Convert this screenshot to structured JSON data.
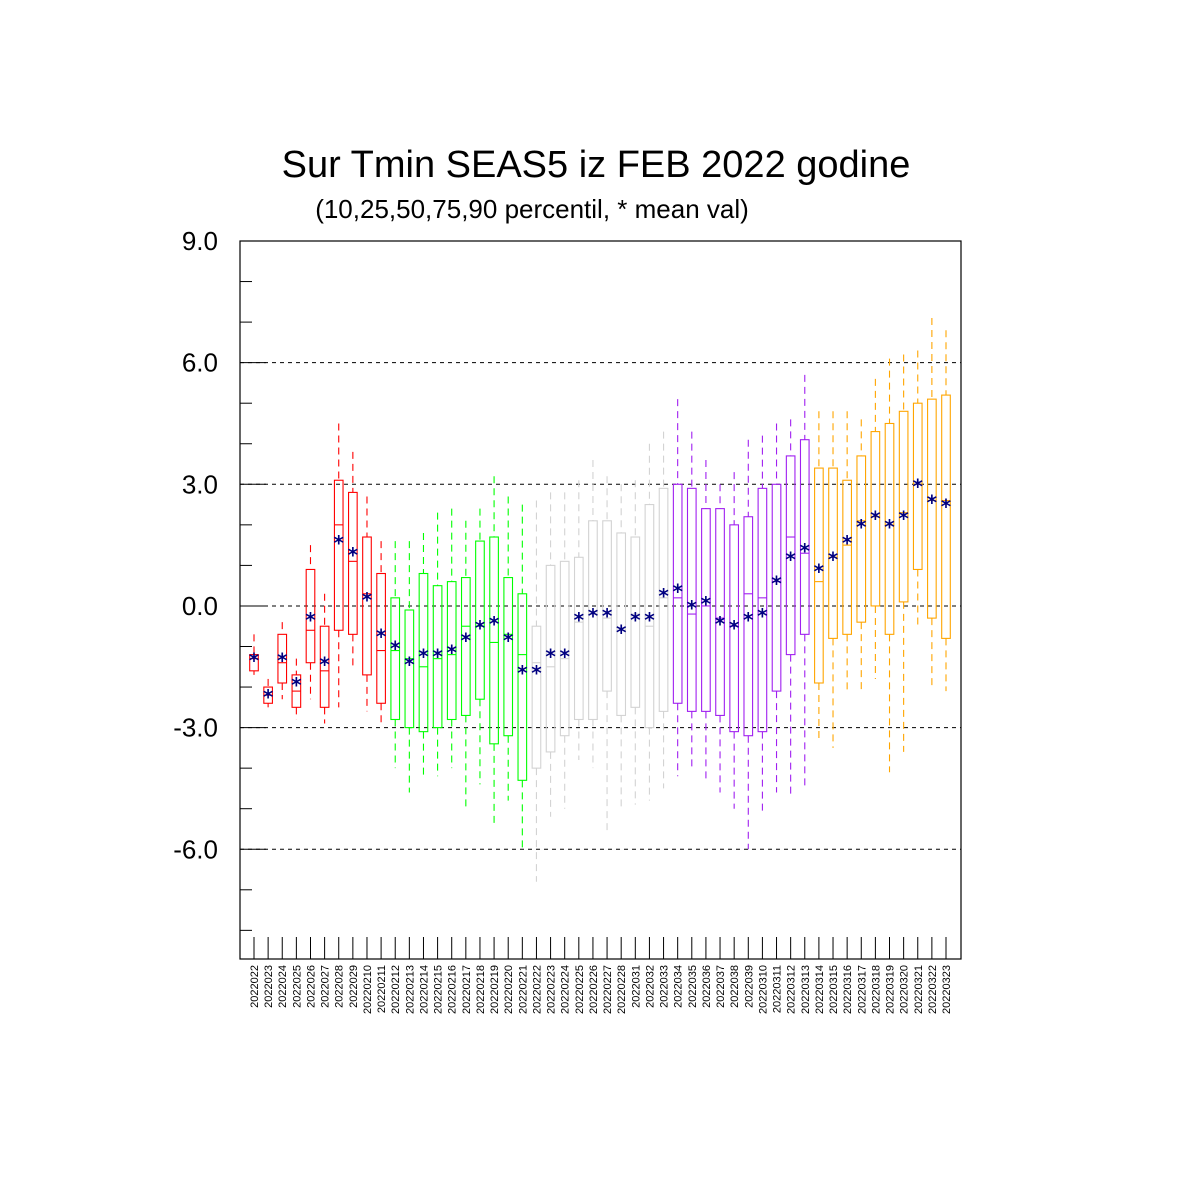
{
  "chart_data": {
    "type": "box",
    "title": "Sur Tmin SEAS5 iz FEB 2022 godine",
    "subtitle": "(10,25,50,75,90 percentil, * mean val)",
    "ylim": [
      -8.0,
      9.0
    ],
    "yticks": [
      9.0,
      6.0,
      3.0,
      0.0,
      -3.0,
      -6.0
    ],
    "ytick_labels": [
      "9.0",
      "6.0",
      "3.0",
      "0.0",
      "-3.0",
      "-6.0"
    ],
    "grid": "horizontal dashed at major ticks",
    "colors": {
      "feb": "#ff0000",
      "week1": "#00ff00",
      "week2": "#d3d3d3",
      "week3": "#a020f0",
      "week4": "#ffa500",
      "mean_marker": "#000080"
    },
    "categories": [
      "2022022",
      "2022023",
      "2022024",
      "2022025",
      "2022026",
      "2022027",
      "2022028",
      "2022029",
      "20220210",
      "20220211",
      "20220212",
      "20220213",
      "20220214",
      "20220215",
      "20220216",
      "20220217",
      "20220218",
      "20220219",
      "20220220",
      "20220221",
      "20220222",
      "20220223",
      "20220224",
      "20220225",
      "20220226",
      "20220227",
      "20220228",
      "2022031",
      "2022032",
      "2022033",
      "2022034",
      "2022035",
      "2022036",
      "2022037",
      "2022038",
      "2022039",
      "20220310",
      "20220311",
      "20220312",
      "20220313",
      "20220314",
      "20220315",
      "20220316",
      "20220317",
      "20220318",
      "20220319",
      "20220320",
      "20220321",
      "20220322",
      "20220323"
    ],
    "boxes": [
      {
        "p10": -1.7,
        "p25": -1.6,
        "p50": -1.3,
        "p75": -1.2,
        "p90": -0.7,
        "mean": -1.3,
        "group": "feb"
      },
      {
        "p10": -2.5,
        "p25": -2.4,
        "p50": -2.2,
        "p75": -2.0,
        "p90": -1.8,
        "mean": -2.2,
        "group": "feb"
      },
      {
        "p10": -2.3,
        "p25": -1.9,
        "p50": -1.4,
        "p75": -0.7,
        "p90": -0.4,
        "mean": -1.3,
        "group": "feb"
      },
      {
        "p10": -2.8,
        "p25": -2.5,
        "p50": -2.1,
        "p75": -1.7,
        "p90": -1.3,
        "mean": -1.9,
        "group": "feb"
      },
      {
        "p10": -2.3,
        "p25": -1.4,
        "p50": -0.6,
        "p75": 0.9,
        "p90": 1.5,
        "mean": -0.3,
        "group": "feb"
      },
      {
        "p10": -2.9,
        "p25": -2.5,
        "p50": -1.6,
        "p75": -0.5,
        "p90": 0.3,
        "mean": -1.4,
        "group": "feb"
      },
      {
        "p10": -2.5,
        "p25": -0.6,
        "p50": 2.0,
        "p75": 3.1,
        "p90": 4.5,
        "mean": 1.6,
        "group": "feb"
      },
      {
        "p10": -1.5,
        "p25": -0.7,
        "p50": 1.1,
        "p75": 2.8,
        "p90": 3.8,
        "mean": 1.3,
        "group": "feb"
      },
      {
        "p10": -2.6,
        "p25": -1.7,
        "p50": 0.3,
        "p75": 1.7,
        "p90": 2.7,
        "mean": 0.2,
        "group": "feb"
      },
      {
        "p10": -2.9,
        "p25": -2.4,
        "p50": -1.1,
        "p75": 0.8,
        "p90": 1.6,
        "mean": -0.7,
        "group": "feb"
      },
      {
        "p10": -4.0,
        "p25": -2.8,
        "p50": -1.1,
        "p75": 0.2,
        "p90": 1.6,
        "mean": -1.0,
        "group": "week1"
      },
      {
        "p10": -4.6,
        "p25": -3.0,
        "p50": -1.3,
        "p75": -0.1,
        "p90": 1.6,
        "mean": -1.4,
        "group": "week1"
      },
      {
        "p10": -4.2,
        "p25": -3.1,
        "p50": -1.5,
        "p75": 0.8,
        "p90": 1.8,
        "mean": -1.2,
        "group": "week1"
      },
      {
        "p10": -4.2,
        "p25": -3.0,
        "p50": -1.3,
        "p75": 0.5,
        "p90": 2.3,
        "mean": -1.2,
        "group": "week1"
      },
      {
        "p10": -4.0,
        "p25": -2.8,
        "p50": -1.2,
        "p75": 0.6,
        "p90": 2.4,
        "mean": -1.1,
        "group": "week1"
      },
      {
        "p10": -5.0,
        "p25": -2.7,
        "p50": -0.5,
        "p75": 0.7,
        "p90": 2.1,
        "mean": -0.8,
        "group": "week1"
      },
      {
        "p10": -4.4,
        "p25": -2.3,
        "p50": -0.5,
        "p75": 1.6,
        "p90": 2.4,
        "mean": -0.5,
        "group": "week1"
      },
      {
        "p10": -5.4,
        "p25": -3.4,
        "p50": -0.9,
        "p75": 1.7,
        "p90": 3.2,
        "mean": -0.4,
        "group": "week1"
      },
      {
        "p10": -4.8,
        "p25": -3.2,
        "p50": -0.7,
        "p75": 0.7,
        "p90": 2.7,
        "mean": -0.8,
        "group": "week1"
      },
      {
        "p10": -6.0,
        "p25": -4.3,
        "p50": -1.2,
        "p75": 0.3,
        "p90": 2.5,
        "mean": -1.6,
        "group": "week1"
      },
      {
        "p10": -6.8,
        "p25": -4.0,
        "p50": -1.4,
        "p75": -0.5,
        "p90": 2.6,
        "mean": -1.6,
        "group": "week2"
      },
      {
        "p10": -5.2,
        "p25": -3.6,
        "p50": -1.5,
        "p75": 1.0,
        "p90": 2.8,
        "mean": -1.2,
        "group": "week2"
      },
      {
        "p10": -5.0,
        "p25": -3.2,
        "p50": -1.3,
        "p75": 1.1,
        "p90": 2.8,
        "mean": -1.2,
        "group": "week2"
      },
      {
        "p10": -3.8,
        "p25": -2.8,
        "p50": -0.4,
        "p75": 1.2,
        "p90": 3.1,
        "mean": -0.3,
        "group": "week2"
      },
      {
        "p10": -4.0,
        "p25": -2.8,
        "p50": -0.2,
        "p75": 2.1,
        "p90": 3.6,
        "mean": -0.2,
        "group": "week2"
      },
      {
        "p10": -5.6,
        "p25": -2.1,
        "p50": -0.3,
        "p75": 2.1,
        "p90": 3.2,
        "mean": -0.2,
        "group": "week2"
      },
      {
        "p10": -5.0,
        "p25": -2.7,
        "p50": -0.6,
        "p75": 1.8,
        "p90": 3.0,
        "mean": -0.6,
        "group": "week2"
      },
      {
        "p10": -4.9,
        "p25": -2.5,
        "p50": -0.2,
        "p75": 1.7,
        "p90": 3.1,
        "mean": -0.3,
        "group": "week2"
      },
      {
        "p10": -4.8,
        "p25": -3.0,
        "p50": -0.5,
        "p75": 2.5,
        "p90": 4.0,
        "mean": -0.3,
        "group": "week2"
      },
      {
        "p10": -4.5,
        "p25": -2.6,
        "p50": 0.2,
        "p75": 2.9,
        "p90": 4.3,
        "mean": 0.3,
        "group": "week2"
      },
      {
        "p10": -4.2,
        "p25": -2.4,
        "p50": 0.2,
        "p75": 3.0,
        "p90": 5.1,
        "mean": 0.4,
        "group": "week3"
      },
      {
        "p10": -4.0,
        "p25": -2.6,
        "p50": -0.2,
        "p75": 2.9,
        "p90": 4.3,
        "mean": 0.0,
        "group": "week3"
      },
      {
        "p10": -4.3,
        "p25": -2.6,
        "p50": 0.0,
        "p75": 2.4,
        "p90": 3.6,
        "mean": 0.1,
        "group": "week3"
      },
      {
        "p10": -4.6,
        "p25": -2.7,
        "p50": -0.3,
        "p75": 2.4,
        "p90": 3.0,
        "mean": -0.4,
        "group": "week3"
      },
      {
        "p10": -5.0,
        "p25": -3.1,
        "p50": -0.5,
        "p75": 2.0,
        "p90": 3.3,
        "mean": -0.5,
        "group": "week3"
      },
      {
        "p10": -6.0,
        "p25": -3.2,
        "p50": 0.3,
        "p75": 2.2,
        "p90": 4.1,
        "mean": -0.3,
        "group": "week3"
      },
      {
        "p10": -5.1,
        "p25": -3.1,
        "p50": 0.2,
        "p75": 2.9,
        "p90": 4.2,
        "mean": -0.2,
        "group": "week3"
      },
      {
        "p10": -4.6,
        "p25": -2.1,
        "p50": 0.6,
        "p75": 3.0,
        "p90": 4.5,
        "mean": 0.6,
        "group": "week3"
      },
      {
        "p10": -4.7,
        "p25": -1.2,
        "p50": 1.7,
        "p75": 3.7,
        "p90": 4.6,
        "mean": 1.2,
        "group": "week3"
      },
      {
        "p10": -4.5,
        "p25": -0.7,
        "p50": 1.3,
        "p75": 4.1,
        "p90": 5.7,
        "mean": 1.4,
        "group": "week3"
      },
      {
        "p10": -3.3,
        "p25": -1.9,
        "p50": 0.6,
        "p75": 3.4,
        "p90": 4.8,
        "mean": 0.9,
        "group": "week4"
      },
      {
        "p10": -3.5,
        "p25": -0.8,
        "p50": 1.2,
        "p75": 3.4,
        "p90": 4.8,
        "mean": 1.2,
        "group": "week4"
      },
      {
        "p10": -2.1,
        "p25": -0.7,
        "p50": 1.5,
        "p75": 3.1,
        "p90": 4.8,
        "mean": 1.6,
        "group": "week4"
      },
      {
        "p10": -2.1,
        "p25": -0.4,
        "p50": 2.1,
        "p75": 3.7,
        "p90": 4.6,
        "mean": 2.0,
        "group": "week4"
      },
      {
        "p10": -1.8,
        "p25": 0.0,
        "p50": 2.2,
        "p75": 4.3,
        "p90": 5.6,
        "mean": 2.2,
        "group": "week4"
      },
      {
        "p10": -4.1,
        "p25": -0.7,
        "p50": 2.0,
        "p75": 4.5,
        "p90": 6.1,
        "mean": 2.0,
        "group": "week4"
      },
      {
        "p10": -3.6,
        "p25": 0.1,
        "p50": 2.3,
        "p75": 4.8,
        "p90": 6.2,
        "mean": 2.2,
        "group": "week4"
      },
      {
        "p10": -0.5,
        "p25": 0.9,
        "p50": 3.0,
        "p75": 5.0,
        "p90": 6.3,
        "mean": 3.0,
        "group": "week4"
      },
      {
        "p10": -2.0,
        "p25": -0.3,
        "p50": 2.6,
        "p75": 5.1,
        "p90": 7.1,
        "mean": 2.6,
        "group": "week4"
      },
      {
        "p10": -2.1,
        "p25": -0.8,
        "p50": 2.6,
        "p75": 5.2,
        "p90": 6.8,
        "mean": 2.5,
        "group": "week4"
      }
    ]
  }
}
